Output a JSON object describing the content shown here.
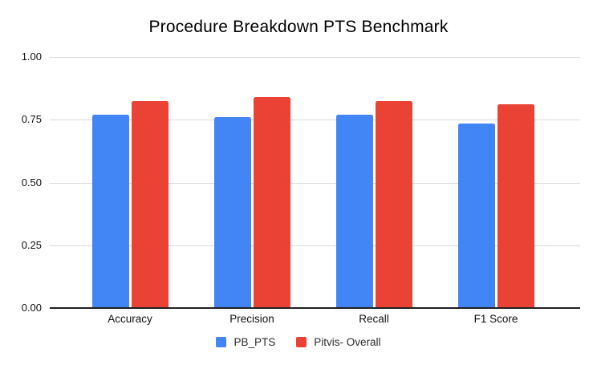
{
  "title": "Procedure Breakdown PTS Benchmark",
  "colors": {
    "series_blue": "#4285F4",
    "series_red": "#EA4335",
    "gridline": "#d9d9d9",
    "axis_line": "#212121",
    "background": "#ffffff",
    "text": "#111111"
  },
  "chart_data": {
    "type": "bar",
    "title": "Procedure Breakdown PTS Benchmark",
    "categories": [
      "Accuracy",
      "Precision",
      "Recall",
      "F1 Score"
    ],
    "series": [
      {
        "name": "PB_PTS",
        "color": "#4285F4",
        "values": [
          0.77,
          0.76,
          0.77,
          0.735
        ]
      },
      {
        "name": "Pitvis- Overall",
        "color": "#EA4335",
        "values": [
          0.825,
          0.84,
          0.825,
          0.81
        ]
      }
    ],
    "xlabel": "",
    "ylabel": "",
    "ylim": [
      0,
      1
    ],
    "yticks": [
      0,
      0.25,
      0.5,
      0.75,
      1
    ],
    "ytick_labels": [
      "0.00",
      "0.25",
      "0.50",
      "0.75",
      "1.00"
    ],
    "grid": true,
    "legend_position": "bottom"
  }
}
